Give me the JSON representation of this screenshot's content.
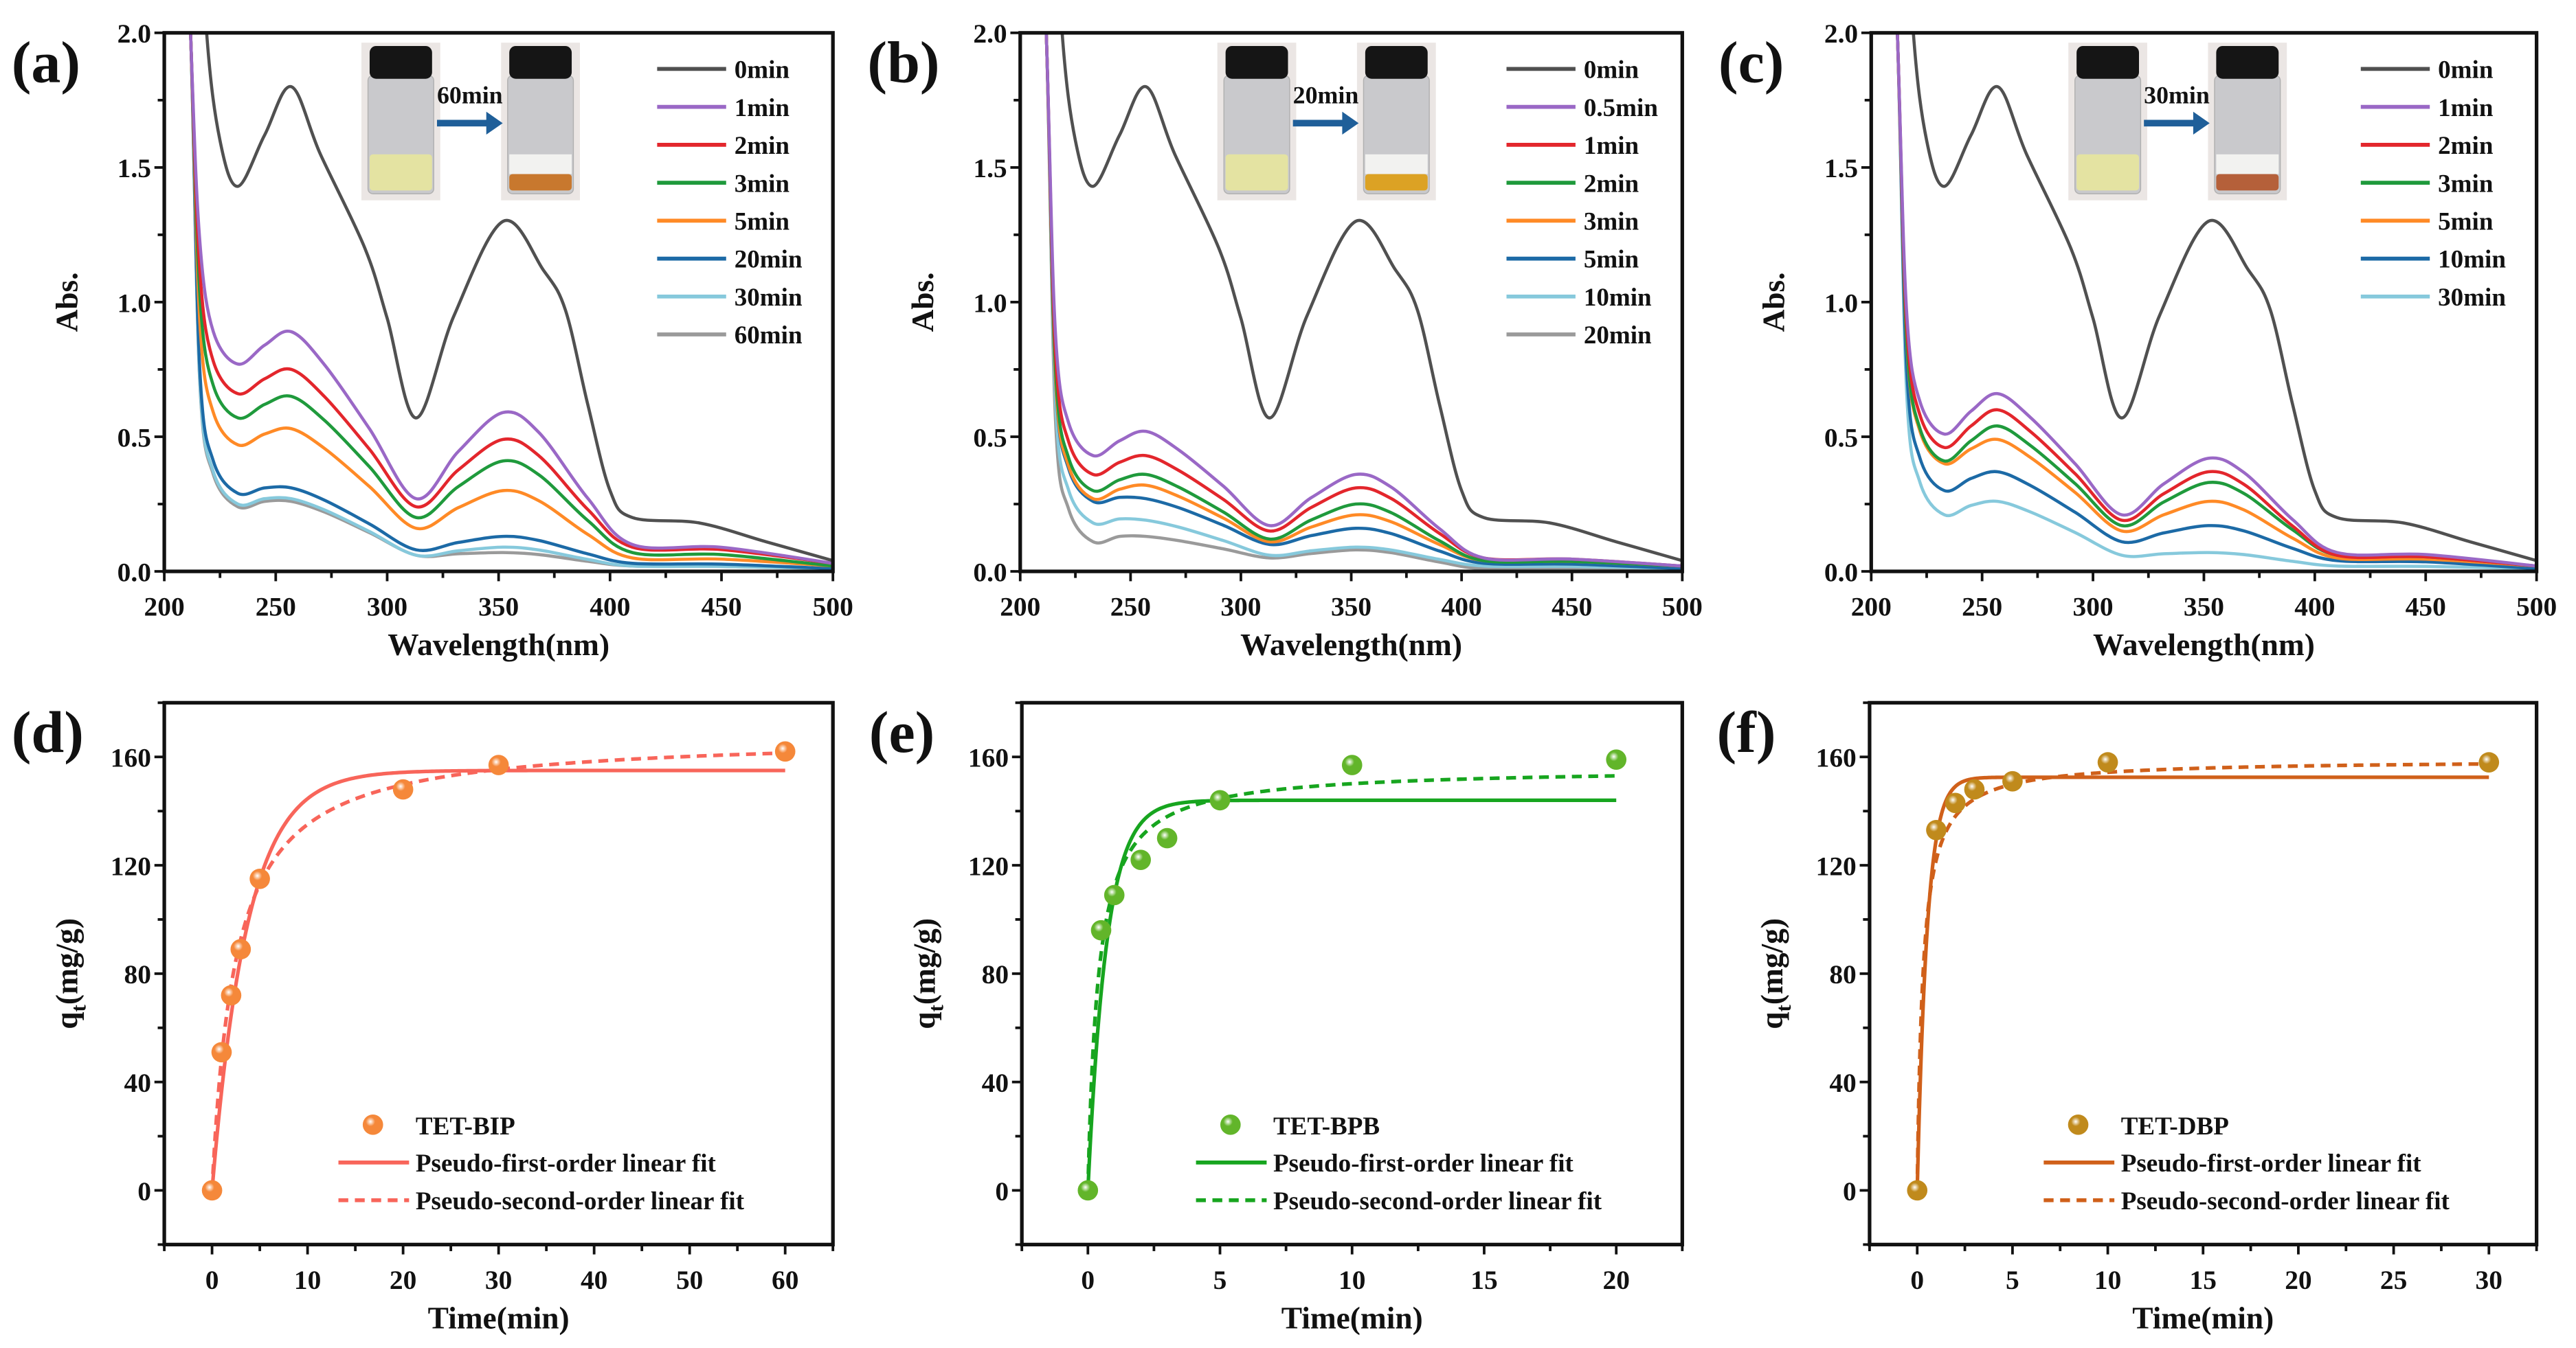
{
  "chart_data": [
    {
      "panel": "a",
      "label": "(a)",
      "type": "line",
      "xlabel": "Wavelength(nm)",
      "ylabel": "Abs.",
      "xlim": [
        200,
        500
      ],
      "ylim": [
        0,
        2.0
      ],
      "xticks": [
        200,
        250,
        300,
        350,
        400,
        450,
        500
      ],
      "xminor": 25,
      "yticks": [
        "0.0",
        "0.5",
        "1.0",
        "1.5",
        "2.0"
      ],
      "yminor": 0.25,
      "inset": {
        "time_label": "60min",
        "before_color": "#e4e3a2",
        "after_color": "#c8782e"
      },
      "key_wavelengths": [
        233,
        257,
        313,
        352,
        410,
        500
      ],
      "series": [
        {
          "name": "0min",
          "color": "#505050",
          "x": [
            214,
            219,
            225,
            233,
            245,
            257,
            270,
            290,
            300,
            313,
            330,
            352,
            370,
            380,
            390,
            400,
            410,
            440,
            470,
            500
          ],
          "y": [
            2.8,
            2.0,
            1.6,
            1.43,
            1.62,
            1.8,
            1.55,
            1.2,
            0.94,
            0.57,
            0.95,
            1.3,
            1.12,
            0.97,
            0.62,
            0.3,
            0.2,
            0.18,
            0.11,
            0.04
          ]
        },
        {
          "name": "1min",
          "color": "#9a68c6",
          "key_abs": [
            0.77,
            0.89,
            0.27,
            0.59,
            0.1,
            0.03
          ]
        },
        {
          "name": "2min",
          "color": "#e3262c",
          "key_abs": [
            0.66,
            0.75,
            0.24,
            0.49,
            0.09,
            0.03
          ]
        },
        {
          "name": "3min",
          "color": "#1f9a3c",
          "key_abs": [
            0.57,
            0.65,
            0.2,
            0.41,
            0.07,
            0.02
          ]
        },
        {
          "name": "5min",
          "color": "#ff8a26",
          "key_abs": [
            0.47,
            0.53,
            0.16,
            0.3,
            0.05,
            0.02
          ]
        },
        {
          "name": "20min",
          "color": "#1c6aa6",
          "key_abs": [
            0.29,
            0.31,
            0.08,
            0.13,
            0.03,
            0.01
          ]
        },
        {
          "name": "30min",
          "color": "#86c9dc",
          "key_abs": [
            0.25,
            0.27,
            0.06,
            0.09,
            0.02,
            0.01
          ]
        },
        {
          "name": "60min",
          "color": "#9a9a9a",
          "key_abs": [
            0.24,
            0.26,
            0.06,
            0.07,
            0.02,
            0.01
          ]
        }
      ]
    },
    {
      "panel": "b",
      "label": "(b)",
      "type": "line",
      "xlabel": "Wavelength(nm)",
      "ylabel": "Abs.",
      "xlim": [
        200,
        500
      ],
      "ylim": [
        0,
        2.0
      ],
      "xticks": [
        200,
        250,
        300,
        350,
        400,
        450,
        500
      ],
      "xminor": 25,
      "yticks": [
        "0.0",
        "0.5",
        "1.0",
        "1.5",
        "2.0"
      ],
      "yminor": 0.25,
      "inset": {
        "time_label": "20min",
        "before_color": "#e4e3a2",
        "after_color": "#dca224"
      },
      "key_wavelengths": [
        233,
        257,
        313,
        352,
        410,
        500
      ],
      "series": [
        {
          "name": "0min",
          "color": "#505050",
          "x": [
            214,
            219,
            225,
            233,
            245,
            257,
            270,
            290,
            300,
            313,
            330,
            352,
            370,
            380,
            390,
            400,
            410,
            440,
            470,
            500
          ],
          "y": [
            2.8,
            2.0,
            1.6,
            1.43,
            1.62,
            1.8,
            1.55,
            1.2,
            0.94,
            0.57,
            0.95,
            1.3,
            1.12,
            0.97,
            0.62,
            0.3,
            0.2,
            0.18,
            0.11,
            0.04
          ]
        },
        {
          "name": "0.5min",
          "color": "#9a68c6",
          "key_abs": [
            0.43,
            0.52,
            0.17,
            0.36,
            0.05,
            0.02
          ]
        },
        {
          "name": "1min",
          "color": "#e3262c",
          "key_abs": [
            0.36,
            0.43,
            0.15,
            0.31,
            0.05,
            0.02
          ]
        },
        {
          "name": "2min",
          "color": "#1f9a3c",
          "key_abs": [
            0.3,
            0.36,
            0.12,
            0.25,
            0.04,
            0.02
          ]
        },
        {
          "name": "3min",
          "color": "#ff8a26",
          "key_abs": [
            0.27,
            0.32,
            0.11,
            0.21,
            0.04,
            0.02
          ]
        },
        {
          "name": "5min",
          "color": "#1c6aa6",
          "key_abs": [
            0.26,
            0.27,
            0.1,
            0.16,
            0.03,
            0.01
          ]
        },
        {
          "name": "10min",
          "color": "#86c9dc",
          "key_abs": [
            0.18,
            0.19,
            0.06,
            0.09,
            0.02,
            0.01
          ]
        },
        {
          "name": "20min",
          "color": "#9a9a9a",
          "key_abs": [
            0.11,
            0.13,
            0.05,
            0.08,
            0.01,
            0.01
          ]
        }
      ]
    },
    {
      "panel": "c",
      "label": "(c)",
      "type": "line",
      "xlabel": "Wavelength(nm)",
      "ylabel": "Abs.",
      "xlim": [
        200,
        500
      ],
      "ylim": [
        0,
        2.0
      ],
      "xticks": [
        200,
        250,
        300,
        350,
        400,
        450,
        500
      ],
      "xminor": 25,
      "yticks": [
        "0.0",
        "0.5",
        "1.0",
        "1.5",
        "2.0"
      ],
      "yminor": 0.25,
      "inset": {
        "time_label": "30min",
        "before_color": "#e4e3a2",
        "after_color": "#b5603a"
      },
      "key_wavelengths": [
        233,
        257,
        313,
        352,
        410,
        500
      ],
      "series": [
        {
          "name": "0min",
          "color": "#505050",
          "x": [
            214,
            219,
            225,
            233,
            245,
            257,
            270,
            290,
            300,
            313,
            330,
            352,
            370,
            380,
            390,
            400,
            410,
            440,
            470,
            500
          ],
          "y": [
            2.8,
            2.0,
            1.6,
            1.43,
            1.62,
            1.8,
            1.55,
            1.2,
            0.94,
            0.57,
            0.95,
            1.3,
            1.12,
            0.97,
            0.62,
            0.3,
            0.2,
            0.18,
            0.11,
            0.04
          ]
        },
        {
          "name": "1min",
          "color": "#9a68c6",
          "key_abs": [
            0.51,
            0.66,
            0.21,
            0.42,
            0.07,
            0.02
          ]
        },
        {
          "name": "2min",
          "color": "#e3262c",
          "key_abs": [
            0.46,
            0.6,
            0.19,
            0.37,
            0.06,
            0.02
          ]
        },
        {
          "name": "3min",
          "color": "#1f9a3c",
          "key_abs": [
            0.41,
            0.54,
            0.17,
            0.33,
            0.06,
            0.02
          ]
        },
        {
          "name": "5min",
          "color": "#ff8a26",
          "key_abs": [
            0.4,
            0.49,
            0.15,
            0.26,
            0.05,
            0.02
          ]
        },
        {
          "name": "10min",
          "color": "#1c6aa6",
          "key_abs": [
            0.3,
            0.37,
            0.11,
            0.17,
            0.04,
            0.01
          ]
        },
        {
          "name": "30min",
          "color": "#86c9dc",
          "key_abs": [
            0.21,
            0.26,
            0.06,
            0.07,
            0.02,
            0.01
          ]
        }
      ]
    },
    {
      "panel": "d",
      "label": "(d)",
      "type": "scatter",
      "xlabel": "Time(min)",
      "ylabel_main": "q",
      "ylabel_sub": "t",
      "ylabel_rest": "(mg/g)",
      "xlim": [
        -5,
        65
      ],
      "ylim": [
        -20,
        180
      ],
      "xticks": [
        0,
        10,
        20,
        30,
        40,
        50,
        60
      ],
      "xminor": 5,
      "yticks": [
        "0",
        "40",
        "80",
        "120",
        "160"
      ],
      "yminor": 20,
      "point_name": "TET-BIP",
      "point_color": "#f5883a",
      "fit_color": "#f8655a",
      "x": [
        0,
        1,
        2,
        3,
        5,
        20,
        30,
        60
      ],
      "y": [
        0,
        51,
        72,
        89,
        115,
        148,
        157,
        162
      ],
      "fits": [
        {
          "name": "Pseudo-first-order linear fit",
          "model": "pfo",
          "qe": 155,
          "k": 0.27,
          "dash": false
        },
        {
          "name": "Pseudo-second-order linear fit",
          "model": "pso",
          "qe": 168,
          "k2_qe": 0.41,
          "dash": true
        }
      ]
    },
    {
      "panel": "e",
      "label": "(e)",
      "type": "scatter",
      "xlabel": "Time(min)",
      "ylabel_main": "q",
      "ylabel_sub": "t",
      "ylabel_rest": "(mg/g)",
      "xlim": [
        -2.5,
        22.5
      ],
      "ylim": [
        -20,
        180
      ],
      "xticks": [
        0,
        5,
        10,
        15,
        20
      ],
      "xminor": 2.5,
      "yticks": [
        "0",
        "40",
        "80",
        "120",
        "160"
      ],
      "yminor": 20,
      "point_name": "TET-BPB",
      "point_color": "#62b52a",
      "fit_color": "#17a51f",
      "x": [
        0,
        0.5,
        1,
        2,
        3,
        5,
        10,
        20
      ],
      "y": [
        0,
        96,
        109,
        122,
        130,
        144,
        157,
        159
      ],
      "fits": [
        {
          "name": "Pseudo-first-order linear fit",
          "model": "pfo",
          "qe": 144,
          "k": 1.41,
          "dash": false
        },
        {
          "name": "Pseudo-second-order linear fit",
          "model": "pso",
          "qe": 156,
          "k2_qe": 2.55,
          "dash": true
        }
      ]
    },
    {
      "panel": "f",
      "label": "(f)",
      "type": "scatter",
      "xlabel": "Time(min)",
      "ylabel_main": "q",
      "ylabel_sub": "t",
      "ylabel_rest": "(mg/g)",
      "xlim": [
        -2.5,
        32.5
      ],
      "ylim": [
        -20,
        180
      ],
      "xticks": [
        0,
        5,
        10,
        15,
        20,
        25,
        30
      ],
      "xminor": 2.5,
      "yticks": [
        "0",
        "40",
        "80",
        "120",
        "160"
      ],
      "yminor": 20,
      "point_name": "TET-DBP",
      "point_color": "#c08a1c",
      "fit_color": "#d0601a",
      "x": [
        0,
        1,
        2,
        3,
        5,
        10,
        30
      ],
      "y": [
        0,
        133,
        143,
        148,
        151,
        158,
        158
      ],
      "fits": [
        {
          "name": "Pseudo-first-order linear fit",
          "model": "pfo",
          "qe": 152.5,
          "k": 1.9,
          "dash": false
        },
        {
          "name": "Pseudo-second-order linear fit",
          "model": "pso",
          "qe": 159,
          "k2_qe": 3.3,
          "dash": true
        }
      ]
    }
  ]
}
